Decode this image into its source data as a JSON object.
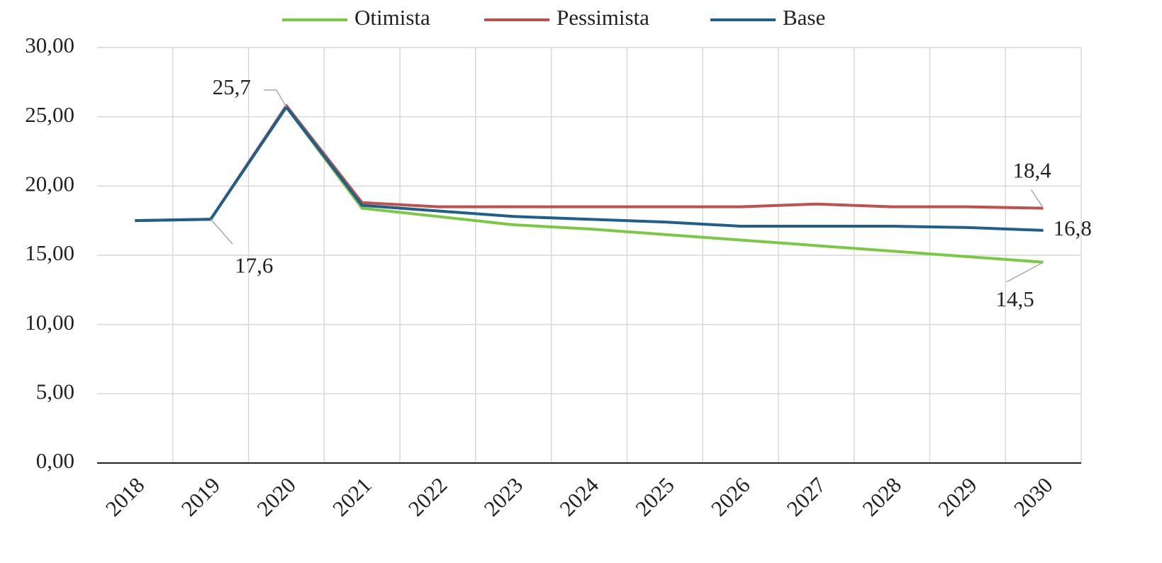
{
  "chart_data": {
    "type": "line",
    "categories": [
      "2018",
      "2019",
      "2020",
      "2021",
      "2022",
      "2023",
      "2024",
      "2025",
      "2026",
      "2027",
      "2028",
      "2029",
      "2030"
    ],
    "series": [
      {
        "name": "Otimista",
        "color": "#7ac943",
        "values": [
          17.5,
          17.6,
          25.7,
          18.4,
          17.8,
          17.2,
          16.9,
          16.5,
          16.1,
          15.7,
          15.3,
          14.9,
          14.5
        ],
        "value_labels": [
          null,
          null,
          null,
          null,
          null,
          null,
          null,
          null,
          null,
          null,
          null,
          null,
          "14,5"
        ]
      },
      {
        "name": "Pessimista",
        "color": "#c0504d",
        "values": [
          17.5,
          17.6,
          25.8,
          18.8,
          18.5,
          18.5,
          18.5,
          18.5,
          18.5,
          18.7,
          18.5,
          18.5,
          18.4
        ],
        "value_labels": [
          null,
          null,
          null,
          null,
          null,
          null,
          null,
          null,
          null,
          null,
          null,
          null,
          "18,4"
        ]
      },
      {
        "name": "Base",
        "color": "#1f5f8b",
        "values": [
          17.5,
          17.6,
          25.7,
          18.6,
          18.2,
          17.8,
          17.6,
          17.4,
          17.1,
          17.1,
          17.1,
          17.0,
          16.8
        ],
        "value_labels": [
          null,
          "17,6",
          "25,7",
          null,
          null,
          null,
          null,
          null,
          null,
          null,
          null,
          null,
          "16,8"
        ]
      }
    ],
    "ylim": [
      0,
      30
    ],
    "yticks": [
      {
        "value": 0,
        "label": "0,00"
      },
      {
        "value": 5,
        "label": "5,00"
      },
      {
        "value": 10,
        "label": "10,00"
      },
      {
        "value": 15,
        "label": "15,00"
      },
      {
        "value": 20,
        "label": "20,00"
      },
      {
        "value": 25,
        "label": "25,00"
      },
      {
        "value": 30,
        "label": "30,00"
      }
    ],
    "grid": true,
    "legend": "top"
  }
}
